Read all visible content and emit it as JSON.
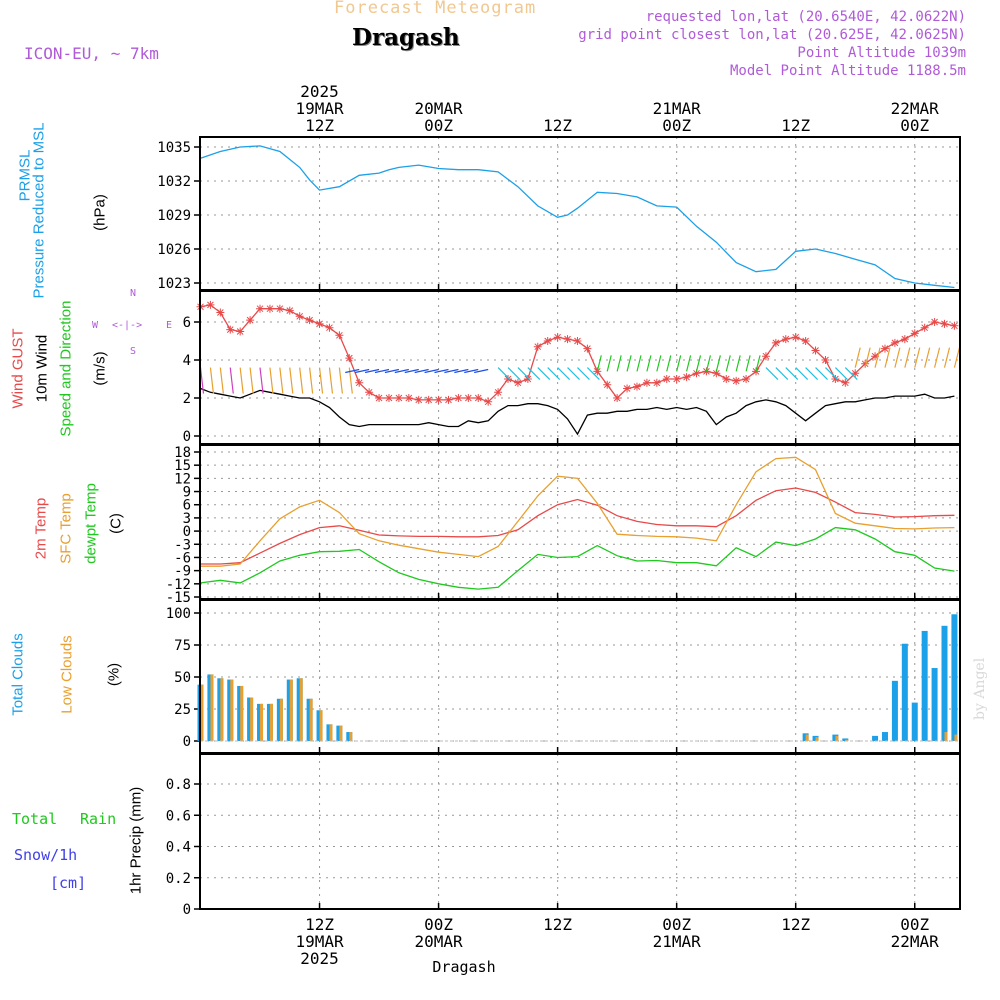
{
  "header": {
    "title": "Forecast Meteogram",
    "place": "Dragash",
    "model": "ICON-EU, ~ 7km",
    "requested": "requested lon,lat (20.6540E, 42.0622N)",
    "grid_point": "grid point closest lon,lat (20.625E, 42.0625N)",
    "point_altitude": "Point Altitude 1039m",
    "model_altitude": "Model Point Altitude 1188.5m"
  },
  "time_axis": {
    "top_labels": [
      {
        "lines": [
          "2025",
          "19MAR",
          "12Z"
        ],
        "hour": 12
      },
      {
        "lines": [
          "20MAR",
          "00Z"
        ],
        "hour": 24
      },
      {
        "lines": [
          "12Z"
        ],
        "hour": 36
      },
      {
        "lines": [
          "21MAR",
          "00Z"
        ],
        "hour": 48
      },
      {
        "lines": [
          "12Z"
        ],
        "hour": 60
      },
      {
        "lines": [
          "22MAR",
          "00Z"
        ],
        "hour": 72
      }
    ],
    "bottom_labels": [
      {
        "lines": [
          "12Z",
          "19MAR",
          "2025"
        ],
        "hour": 12
      },
      {
        "lines": [
          "00Z",
          "20MAR"
        ],
        "hour": 24
      },
      {
        "lines": [
          "12Z"
        ],
        "hour": 36
      },
      {
        "lines": [
          "00Z",
          "21MAR"
        ],
        "hour": 48
      },
      {
        "lines": [
          "12Z"
        ],
        "hour": 60
      },
      {
        "lines": [
          "00Z",
          "22MAR"
        ],
        "hour": 72
      }
    ],
    "footer_place": "Dragash"
  },
  "panels": {
    "pressure": {
      "labels": [
        "PRMSL",
        "Pressure Reduced to MSL",
        "(hPa)"
      ]
    },
    "wind": {
      "labels": [
        "Wind GUST",
        "10m Wind",
        "Speed and Direction",
        "(m/s)"
      ],
      "compass": {
        "n": "N",
        "s": "S",
        "w": "W",
        "e": "E"
      }
    },
    "temp": {
      "labels": [
        "2m Temp",
        "SFC Temp",
        "dewpt Temp",
        "(C)"
      ]
    },
    "clouds": {
      "labels": [
        "Total Clouds",
        "Low Clouds",
        "(%)"
      ],
      "watermark": "by Angel"
    },
    "precip": {
      "labels": [
        "Total",
        "Rain",
        "Snow/1h",
        "[cm]",
        "1hr Precip (mm)"
      ]
    }
  },
  "colors": {
    "pressure": "#1ca0e8",
    "gust": "#e84a4a",
    "wind": "#000000",
    "t2m": "#e84a4a",
    "sfc": "#e8a030",
    "dewpt": "#20c820",
    "total_clouds": "#1ca0e8",
    "low_clouds": "#e8a030",
    "rain": "#20c820",
    "snow": "#4040e8",
    "label_purple": "#b05ad8"
  },
  "chart_data": [
    {
      "type": "line",
      "title": "PRMSL Pressure Reduced to MSL",
      "ylabel": "(hPa)",
      "ylim": [
        1022.5,
        1036.5
      ],
      "yticks": [
        1023,
        1026,
        1029,
        1032,
        1035
      ],
      "x_unit": "hours from 19MAR 00Z",
      "x": [
        0,
        2,
        4,
        6,
        8,
        10,
        11,
        12,
        14,
        16,
        18,
        19,
        20,
        22,
        24,
        26,
        28,
        30,
        32,
        34,
        36,
        37,
        38,
        40,
        42,
        44,
        46,
        48,
        50,
        52,
        54,
        56,
        58,
        60,
        62,
        64,
        66,
        68,
        70,
        72,
        74,
        75,
        76
      ],
      "series": [
        {
          "name": "PRMSL",
          "values": [
            1034,
            1034.6,
            1035,
            1035.1,
            1034.6,
            1033.2,
            1032.1,
            1031.2,
            1031.5,
            1032.5,
            1032.7,
            1033,
            1033.2,
            1033.4,
            1033.1,
            1033,
            1033,
            1032.8,
            1031.5,
            1029.8,
            1028.8,
            1029,
            1029.6,
            1031,
            1030.9,
            1030.6,
            1029.8,
            1029.7,
            1028,
            1026.6,
            1024.8,
            1024,
            1024.2,
            1025.8,
            1026,
            1025.6,
            1025.1,
            1024.6,
            1023.4,
            1023,
            1022.8,
            1022.7,
            1022.6
          ]
        }
      ]
    },
    {
      "type": "line",
      "title": "Wind GUST / 10m Wind Speed and Direction",
      "ylabel": "(m/s)",
      "ylim": [
        -0.2,
        7.8
      ],
      "yticks": [
        0,
        2,
        4,
        6
      ],
      "x_unit": "hours from 19MAR 00Z",
      "x": [
        0,
        1,
        2,
        3,
        4,
        5,
        6,
        7,
        8,
        9,
        10,
        11,
        12,
        13,
        14,
        15,
        16,
        17,
        18,
        19,
        20,
        21,
        22,
        23,
        24,
        25,
        26,
        27,
        28,
        29,
        30,
        31,
        32,
        33,
        34,
        35,
        36,
        37,
        38,
        39,
        40,
        41,
        42,
        43,
        44,
        45,
        46,
        47,
        48,
        49,
        50,
        51,
        52,
        53,
        54,
        55,
        56,
        57,
        58,
        59,
        60,
        61,
        62,
        63,
        64,
        65,
        66,
        67,
        68,
        69,
        70,
        71,
        72,
        73,
        74,
        75,
        76
      ],
      "series": [
        {
          "name": "Wind GUST",
          "values": [
            6.8,
            6.9,
            6.5,
            5.6,
            5.5,
            6.1,
            6.7,
            6.7,
            6.7,
            6.6,
            6.3,
            6.1,
            5.9,
            5.7,
            5.3,
            4.1,
            2.8,
            2.3,
            2.0,
            2.0,
            2.0,
            2.0,
            1.9,
            1.9,
            1.9,
            1.9,
            2.0,
            2.0,
            2.0,
            1.8,
            2.3,
            3.0,
            2.8,
            3.0,
            4.7,
            5.0,
            5.2,
            5.1,
            5.0,
            4.6,
            3.4,
            2.7,
            2.0,
            2.5,
            2.6,
            2.8,
            2.8,
            3.0,
            3.0,
            3.1,
            3.3,
            3.4,
            3.3,
            3.0,
            2.9,
            3.0,
            3.4,
            4.2,
            4.9,
            5.1,
            5.2,
            5.0,
            4.5,
            4.0,
            3.0,
            2.8,
            3.3,
            3.8,
            4.2,
            4.6,
            4.9,
            5.1,
            5.4,
            5.7,
            6.0,
            5.9,
            5.8
          ]
        },
        {
          "name": "10m Wind",
          "values": [
            2.5,
            2.3,
            2.2,
            2.1,
            2.0,
            2.2,
            2.4,
            2.3,
            2.2,
            2.1,
            2.0,
            2.0,
            1.8,
            1.5,
            1.0,
            0.6,
            0.5,
            0.6,
            0.6,
            0.6,
            0.6,
            0.6,
            0.6,
            0.7,
            0.6,
            0.5,
            0.5,
            0.8,
            0.7,
            0.8,
            1.3,
            1.6,
            1.6,
            1.7,
            1.7,
            1.6,
            1.4,
            0.9,
            0.1,
            1.1,
            1.2,
            1.2,
            1.3,
            1.3,
            1.4,
            1.4,
            1.5,
            1.4,
            1.5,
            1.4,
            1.5,
            1.3,
            0.6,
            1.0,
            1.2,
            1.6,
            1.8,
            1.9,
            1.8,
            1.6,
            1.2,
            0.8,
            1.2,
            1.6,
            1.7,
            1.8,
            1.8,
            1.9,
            2.0,
            2.0,
            2.1,
            2.1,
            2.1,
            2.2,
            2.0,
            2.0,
            2.1
          ]
        }
      ]
    },
    {
      "type": "line",
      "title": "2m Temp / SFC Temp / dewpt Temp",
      "ylabel": "(C)",
      "ylim": [
        -15,
        19
      ],
      "yticks": [
        -15,
        -12,
        -9,
        -6,
        -3,
        0,
        3,
        6,
        9,
        12,
        15,
        18
      ],
      "x_unit": "hours from 19MAR 00Z",
      "x": [
        0,
        2,
        4,
        6,
        8,
        10,
        12,
        14,
        16,
        18,
        20,
        22,
        24,
        26,
        28,
        30,
        32,
        34,
        36,
        38,
        40,
        42,
        44,
        46,
        48,
        50,
        52,
        54,
        56,
        58,
        60,
        62,
        64,
        66,
        68,
        70,
        72,
        74,
        76
      ],
      "series": [
        {
          "name": "2m Temp",
          "values": [
            -7.5,
            -7.5,
            -7.2,
            -5,
            -2.8,
            -0.8,
            0.8,
            1.2,
            0.2,
            -0.9,
            -1.1,
            -1.2,
            -1.2,
            -1.3,
            -1.3,
            -1.0,
            0.3,
            3.5,
            6.0,
            7.2,
            5.9,
            3.5,
            2.2,
            1.5,
            1.2,
            1.2,
            1.0,
            3.5,
            7.0,
            9.2,
            9.8,
            8.8,
            6.6,
            4.2,
            3.8,
            3.2,
            3.3,
            3.5,
            3.6
          ]
        },
        {
          "name": "SFC Temp",
          "values": [
            -8,
            -8,
            -7.5,
            -2.2,
            2.8,
            5.5,
            7.0,
            4.2,
            -0.6,
            -2.2,
            -3.2,
            -4.0,
            -4.8,
            -5.3,
            -5.8,
            -3.5,
            2.2,
            8.0,
            12.5,
            12.0,
            6.3,
            -0.7,
            -1.0,
            -1.2,
            -1.3,
            -1.6,
            -2.2,
            6.0,
            13.5,
            16.5,
            16.8,
            14.0,
            4.0,
            1.8,
            1.2,
            0.6,
            0.5,
            0.7,
            0.8
          ]
        },
        {
          "name": "dewpt Temp",
          "values": [
            -11.8,
            -11.2,
            -11.8,
            -9.5,
            -6.8,
            -5.5,
            -4.7,
            -4.6,
            -4.2,
            -7.0,
            -9.5,
            -11.0,
            -12.0,
            -12.8,
            -13.2,
            -12.8,
            -9.0,
            -5.3,
            -6.0,
            -5.8,
            -3.3,
            -5.6,
            -6.8,
            -6.7,
            -7.2,
            -7.2,
            -7.9,
            -3.8,
            -5.8,
            -2.5,
            -3.3,
            -1.8,
            0.8,
            0.3,
            -1.8,
            -4.7,
            -5.5,
            -8.4,
            -9.1
          ]
        }
      ]
    },
    {
      "type": "bar",
      "title": "Total Clouds / Low Clouds",
      "ylabel": "(%)",
      "ylim": [
        -4,
        108
      ],
      "yticks": [
        0,
        25,
        50,
        75,
        100
      ],
      "x_unit": "hours from 19MAR 00Z",
      "x": [
        0,
        1,
        2,
        3,
        4,
        5,
        6,
        7,
        8,
        9,
        10,
        11,
        12,
        13,
        14,
        15,
        16,
        17,
        18,
        19,
        20,
        21,
        22,
        23,
        24,
        25,
        26,
        27,
        28,
        29,
        30,
        31,
        32,
        33,
        34,
        35,
        36,
        37,
        38,
        39,
        40,
        41,
        42,
        43,
        44,
        45,
        46,
        47,
        48,
        49,
        50,
        51,
        52,
        53,
        54,
        55,
        56,
        57,
        58,
        59,
        60,
        61,
        62,
        63,
        64,
        65,
        66,
        67,
        68,
        69,
        70,
        71,
        72,
        73,
        74,
        75,
        76
      ],
      "series": [
        {
          "name": "Total Clouds",
          "values": [
            44,
            52,
            49,
            48,
            43,
            34,
            29,
            29,
            33,
            48,
            49,
            33,
            24,
            13,
            12,
            7,
            0,
            0,
            0,
            0,
            0,
            0,
            0,
            0,
            0,
            0,
            0,
            0,
            0,
            0,
            0,
            0,
            0,
            0,
            0,
            0,
            0,
            0,
            0,
            0,
            0,
            0,
            0,
            0,
            0,
            0,
            0,
            0,
            0,
            0,
            0,
            0,
            0,
            0,
            0,
            0,
            0,
            0,
            0,
            0,
            0,
            6,
            4,
            0,
            5,
            2,
            0,
            0,
            4,
            7,
            47,
            76,
            30,
            86,
            57,
            90,
            99
          ]
        },
        {
          "name": "Low Clouds",
          "values": [
            44,
            52,
            49,
            48,
            43,
            34,
            29,
            29,
            33,
            48,
            49,
            33,
            24,
            13,
            12,
            7,
            0,
            0,
            0,
            0,
            0,
            0,
            0,
            0,
            0,
            0,
            0,
            0,
            0,
            0,
            0,
            0,
            0,
            0,
            0,
            0,
            0,
            0,
            0,
            0,
            0,
            0,
            0,
            0,
            0,
            0,
            0,
            0,
            0,
            0,
            0,
            0,
            0,
            0,
            0,
            0,
            0,
            0,
            0,
            0,
            0,
            5,
            3,
            0,
            4,
            1,
            0,
            0,
            0,
            0,
            0,
            0,
            0,
            0,
            0,
            7,
            5
          ]
        }
      ]
    },
    {
      "type": "line",
      "title": "1hr Precip",
      "ylabel": "1hr Precip (mm)",
      "ylim": [
        0,
        1
      ],
      "yticks": [
        0,
        0.2,
        0.4,
        0.6,
        0.8
      ],
      "x_unit": "hours from 19MAR 00Z",
      "x": [
        0,
        76
      ],
      "series": [
        {
          "name": "Total Rain",
          "values": [
            0,
            0
          ]
        }
      ]
    }
  ]
}
